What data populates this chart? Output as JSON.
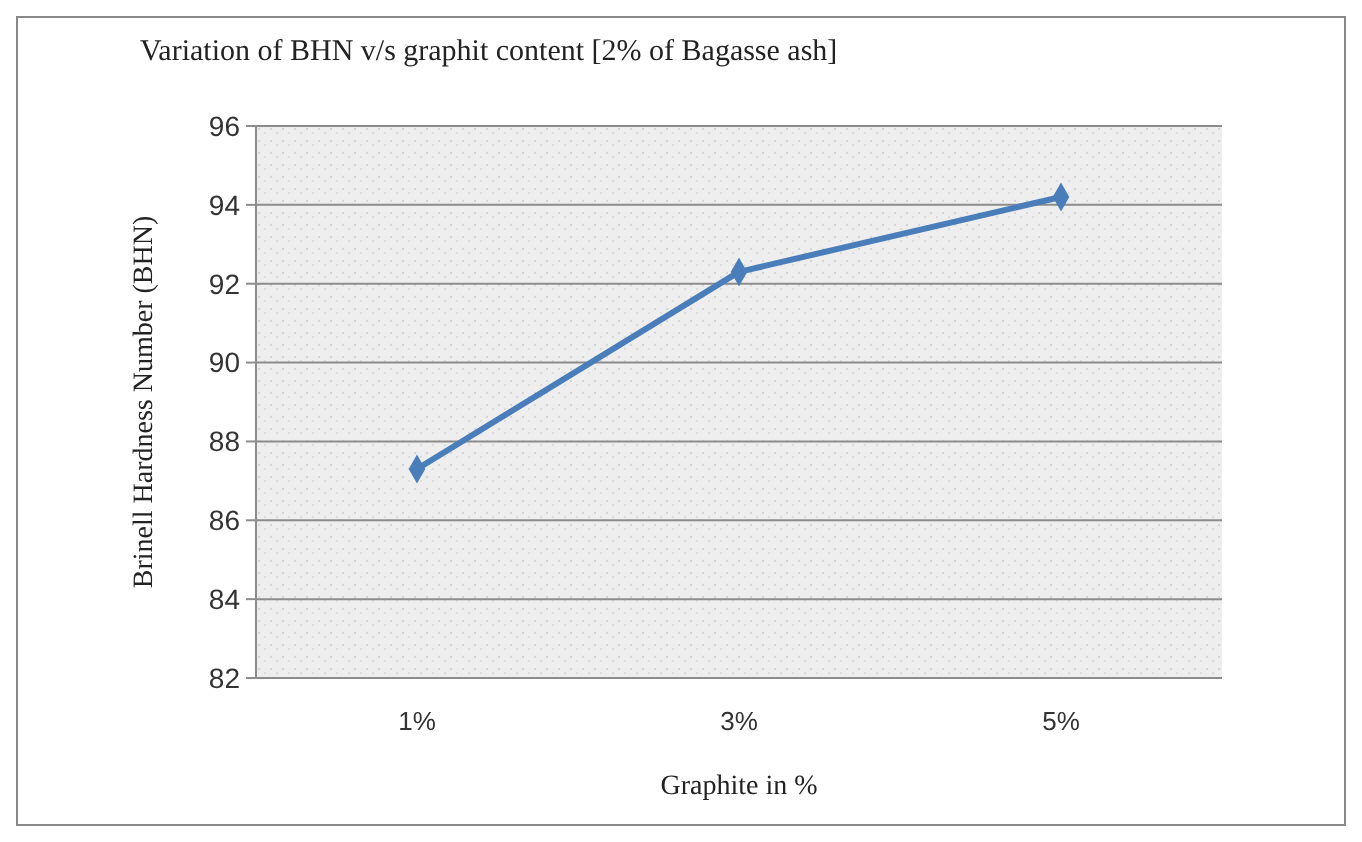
{
  "chart_data": {
    "type": "line",
    "title": "Variation of BHN v/s graphit content  [2% of Bagasse ash]",
    "xlabel": "Graphite in %",
    "ylabel": "Brinell Hardness Number  (BHN)",
    "categories": [
      "1%",
      "3%",
      "5%"
    ],
    "series": [
      {
        "color": "#4a7ebb",
        "values": [
          87.3,
          92.3,
          94.2
        ]
      }
    ],
    "ylim": [
      82,
      96
    ],
    "yticks": [
      82,
      84,
      86,
      88,
      90,
      92,
      94,
      96
    ],
    "grid": "y",
    "marker": "diamond",
    "line_style": "solid"
  }
}
